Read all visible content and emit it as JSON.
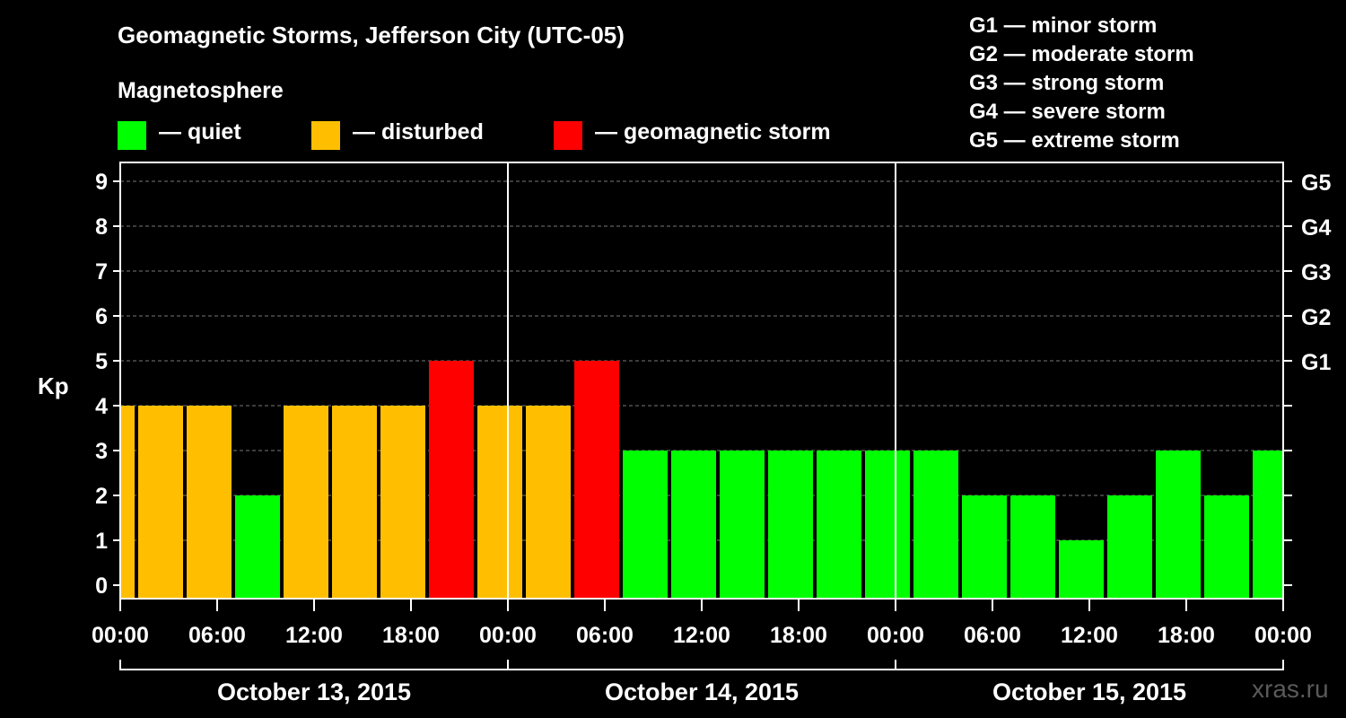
{
  "header": {
    "title": "Geomagnetic Storms, Jefferson City (UTC-05)",
    "subtitle": "Magnetosphere"
  },
  "legend": [
    {
      "label": "— quiet",
      "color": "#00ff00"
    },
    {
      "label": "— disturbed",
      "color": "#ffbf00"
    },
    {
      "label": "— geomagnetic storm",
      "color": "#ff0000"
    }
  ],
  "storm_scale": [
    "G1 — minor storm",
    "G2 — moderate storm",
    "G3 — strong storm",
    "G4 — severe storm",
    "G5 — extreme storm"
  ],
  "watermark": "xras.ru",
  "chart_data": {
    "type": "bar",
    "ylabel": "Kp",
    "ylim": [
      0,
      9
    ],
    "yticks": [
      "0",
      "1",
      "2",
      "3",
      "4",
      "5",
      "6",
      "7",
      "8",
      "9"
    ],
    "right_ticks": [
      {
        "kp": 5,
        "label": "G1"
      },
      {
        "kp": 6,
        "label": "G2"
      },
      {
        "kp": 7,
        "label": "G3"
      },
      {
        "kp": 8,
        "label": "G4"
      },
      {
        "kp": 9,
        "label": "G5"
      }
    ],
    "xticks": [
      "00:00",
      "06:00",
      "12:00",
      "18:00",
      "00:00",
      "06:00",
      "12:00",
      "18:00",
      "00:00",
      "06:00",
      "12:00",
      "18:00",
      "00:00"
    ],
    "xlim_hours": [
      0,
      72
    ],
    "days": [
      "October 13, 2015",
      "October 14, 2015",
      "October 15, 2015"
    ],
    "grid": "dashed horizontal",
    "colors": {
      "quiet": "#00ff00",
      "disturbed": "#ffbf00",
      "storm": "#ff0000"
    },
    "bars": [
      {
        "start": 0,
        "end": 1,
        "value": 4,
        "level": "disturbed"
      },
      {
        "start": 1,
        "end": 4,
        "value": 4,
        "level": "disturbed"
      },
      {
        "start": 4,
        "end": 7,
        "value": 4,
        "level": "disturbed"
      },
      {
        "start": 7,
        "end": 10,
        "value": 2,
        "level": "quiet"
      },
      {
        "start": 10,
        "end": 13,
        "value": 4,
        "level": "disturbed"
      },
      {
        "start": 13,
        "end": 16,
        "value": 4,
        "level": "disturbed"
      },
      {
        "start": 16,
        "end": 19,
        "value": 4,
        "level": "disturbed"
      },
      {
        "start": 19,
        "end": 22,
        "value": 5,
        "level": "storm"
      },
      {
        "start": 22,
        "end": 25,
        "value": 4,
        "level": "disturbed"
      },
      {
        "start": 25,
        "end": 28,
        "value": 4,
        "level": "disturbed"
      },
      {
        "start": 28,
        "end": 31,
        "value": 5,
        "level": "storm"
      },
      {
        "start": 31,
        "end": 34,
        "value": 3,
        "level": "quiet"
      },
      {
        "start": 34,
        "end": 37,
        "value": 3,
        "level": "quiet"
      },
      {
        "start": 37,
        "end": 40,
        "value": 3,
        "level": "quiet"
      },
      {
        "start": 40,
        "end": 43,
        "value": 3,
        "level": "quiet"
      },
      {
        "start": 43,
        "end": 46,
        "value": 3,
        "level": "quiet"
      },
      {
        "start": 46,
        "end": 49,
        "value": 3,
        "level": "quiet"
      },
      {
        "start": 49,
        "end": 52,
        "value": 3,
        "level": "quiet"
      },
      {
        "start": 52,
        "end": 55,
        "value": 2,
        "level": "quiet"
      },
      {
        "start": 55,
        "end": 58,
        "value": 2,
        "level": "quiet"
      },
      {
        "start": 58,
        "end": 61,
        "value": 1,
        "level": "quiet"
      },
      {
        "start": 61,
        "end": 64,
        "value": 2,
        "level": "quiet"
      },
      {
        "start": 64,
        "end": 67,
        "value": 3,
        "level": "quiet"
      },
      {
        "start": 67,
        "end": 70,
        "value": 2,
        "level": "quiet"
      },
      {
        "start": 70,
        "end": 72,
        "value": 3,
        "level": "quiet"
      }
    ]
  }
}
